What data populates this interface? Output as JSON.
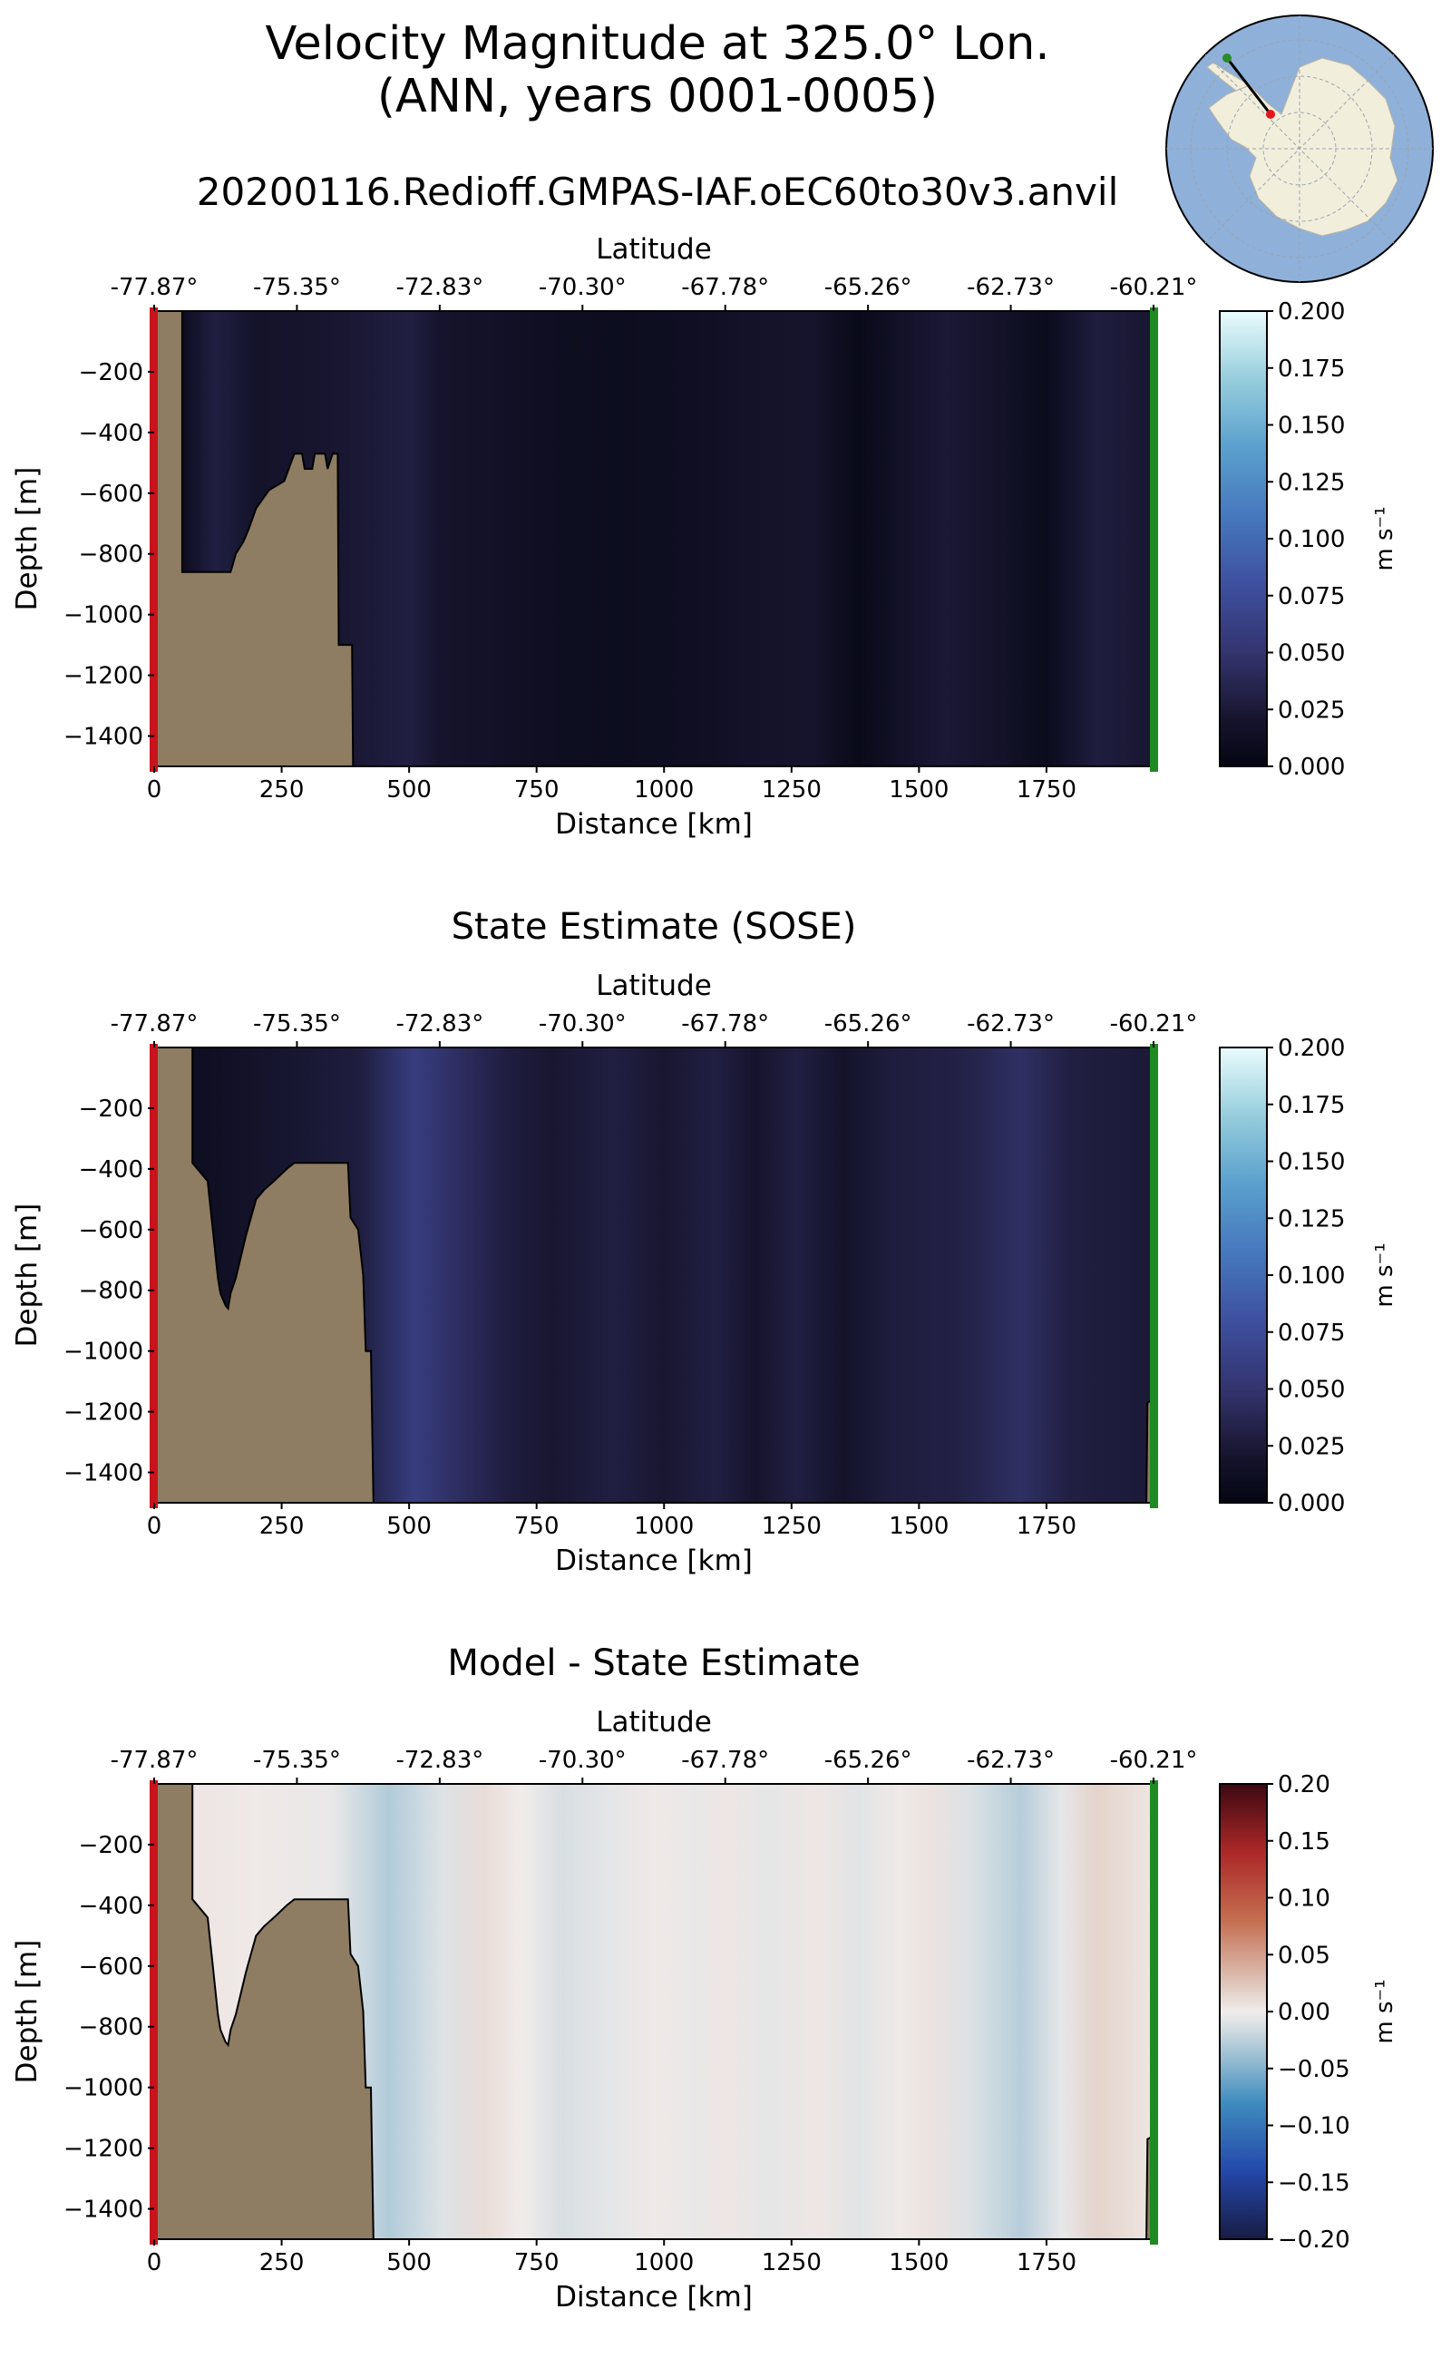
{
  "figure": {
    "title_line1": "Velocity Magnitude at 325.0° Lon.",
    "title_line2": "(ANN, years 0001-0005)",
    "run_name": "20200116.Redioff.GMPAS-IAF.oEC60to30v3.anvil"
  },
  "colors": {
    "land": "#8e7d63",
    "start_marker": "#c8141c",
    "end_marker": "#1f8a24",
    "inset_ocean": "#8fb0d9",
    "inset_land": "#f1eedc"
  },
  "inset_map": {
    "icon": "antarctica-polar-map-icon",
    "start_point_color": "#e8141c",
    "end_point_color": "#2a8a2a"
  },
  "chart_data": [
    {
      "type": "heatmap",
      "title": "",
      "xlabel": "Distance [km]",
      "ylabel": "Depth [m]",
      "top_xlabel": "Latitude",
      "xlim": [
        0,
        1960
      ],
      "ylim": [
        -1500,
        0
      ],
      "xticks": [
        0,
        250,
        500,
        750,
        1000,
        1250,
        1500,
        1750
      ],
      "yticks": [
        -200,
        -400,
        -600,
        -800,
        -1000,
        -1200,
        -1400
      ],
      "top_ticks": [
        "-77.87°",
        "-75.35°",
        "-72.83°",
        "-70.30°",
        "-67.78°",
        "-65.26°",
        "-62.73°",
        "-60.21°"
      ],
      "colorbar": {
        "colormap": "ice",
        "min": 0.0,
        "max": 0.2,
        "ticks": [
          "0.000",
          "0.025",
          "0.050",
          "0.075",
          "0.100",
          "0.125",
          "0.150",
          "0.175",
          "0.200"
        ],
        "label": "m s⁻¹"
      },
      "column_values": [
        {
          "x": 0,
          "v": 0.012
        },
        {
          "x": 60,
          "v": 0.012
        },
        {
          "x": 120,
          "v": 0.03
        },
        {
          "x": 200,
          "v": 0.018
        },
        {
          "x": 260,
          "v": 0.02
        },
        {
          "x": 360,
          "v": 0.022
        },
        {
          "x": 500,
          "v": 0.03
        },
        {
          "x": 560,
          "v": 0.02
        },
        {
          "x": 680,
          "v": 0.016
        },
        {
          "x": 760,
          "v": 0.012
        },
        {
          "x": 900,
          "v": 0.01
        },
        {
          "x": 1050,
          "v": 0.012
        },
        {
          "x": 1200,
          "v": 0.018
        },
        {
          "x": 1290,
          "v": 0.02
        },
        {
          "x": 1380,
          "v": 0.005
        },
        {
          "x": 1460,
          "v": 0.016
        },
        {
          "x": 1550,
          "v": 0.024
        },
        {
          "x": 1650,
          "v": 0.018
        },
        {
          "x": 1750,
          "v": 0.008
        },
        {
          "x": 1850,
          "v": 0.028
        },
        {
          "x": 1960,
          "v": 0.022
        }
      ],
      "bathymetry": [
        [
          0,
          0
        ],
        [
          55,
          0
        ],
        [
          55,
          -860
        ],
        [
          150,
          -860
        ],
        [
          160,
          -800
        ],
        [
          175,
          -760
        ],
        [
          185,
          -720
        ],
        [
          200,
          -650
        ],
        [
          225,
          -590
        ],
        [
          255,
          -560
        ],
        [
          275,
          -470
        ],
        [
          290,
          -470
        ],
        [
          295,
          -520
        ],
        [
          310,
          -520
        ],
        [
          315,
          -470
        ],
        [
          335,
          -470
        ],
        [
          340,
          -520
        ],
        [
          350,
          -470
        ],
        [
          360,
          -470
        ],
        [
          362,
          -1100
        ],
        [
          388,
          -1100
        ],
        [
          390,
          -1500
        ],
        [
          0,
          -1500
        ]
      ],
      "bathymetry_right": []
    },
    {
      "type": "heatmap",
      "title": "State Estimate (SOSE)",
      "xlabel": "Distance [km]",
      "ylabel": "Depth [m]",
      "top_xlabel": "Latitude",
      "xlim": [
        0,
        1960
      ],
      "ylim": [
        -1500,
        0
      ],
      "xticks": [
        0,
        250,
        500,
        750,
        1000,
        1250,
        1500,
        1750
      ],
      "yticks": [
        -200,
        -400,
        -600,
        -800,
        -1000,
        -1200,
        -1400
      ],
      "top_ticks": [
        "-77.87°",
        "-75.35°",
        "-72.83°",
        "-70.30°",
        "-67.78°",
        "-65.26°",
        "-62.73°",
        "-60.21°"
      ],
      "colorbar": {
        "colormap": "ice",
        "min": 0.0,
        "max": 0.2,
        "ticks": [
          "0.000",
          "0.025",
          "0.050",
          "0.075",
          "0.100",
          "0.125",
          "0.150",
          "0.175",
          "0.200"
        ],
        "label": "m s⁻¹"
      },
      "column_values": [
        {
          "x": 0,
          "v": 0.012
        },
        {
          "x": 100,
          "v": 0.012
        },
        {
          "x": 200,
          "v": 0.018
        },
        {
          "x": 400,
          "v": 0.028
        },
        {
          "x": 510,
          "v": 0.06
        },
        {
          "x": 620,
          "v": 0.04
        },
        {
          "x": 700,
          "v": 0.028
        },
        {
          "x": 780,
          "v": 0.022
        },
        {
          "x": 900,
          "v": 0.03
        },
        {
          "x": 1000,
          "v": 0.022
        },
        {
          "x": 1100,
          "v": 0.03
        },
        {
          "x": 1180,
          "v": 0.02
        },
        {
          "x": 1260,
          "v": 0.03
        },
        {
          "x": 1350,
          "v": 0.018
        },
        {
          "x": 1450,
          "v": 0.028
        },
        {
          "x": 1580,
          "v": 0.032
        },
        {
          "x": 1700,
          "v": 0.045
        },
        {
          "x": 1800,
          "v": 0.03
        },
        {
          "x": 1960,
          "v": 0.025
        }
      ],
      "bathymetry": [
        [
          0,
          0
        ],
        [
          75,
          0
        ],
        [
          75,
          -380
        ],
        [
          105,
          -440
        ],
        [
          110,
          -520
        ],
        [
          115,
          -600
        ],
        [
          120,
          -680
        ],
        [
          125,
          -760
        ],
        [
          130,
          -810
        ],
        [
          140,
          -850
        ],
        [
          145,
          -860
        ],
        [
          150,
          -810
        ],
        [
          160,
          -760
        ],
        [
          170,
          -690
        ],
        [
          180,
          -620
        ],
        [
          190,
          -560
        ],
        [
          200,
          -500
        ],
        [
          215,
          -470
        ],
        [
          235,
          -440
        ],
        [
          260,
          -400
        ],
        [
          275,
          -380
        ],
        [
          380,
          -380
        ],
        [
          385,
          -560
        ],
        [
          400,
          -600
        ],
        [
          410,
          -750
        ],
        [
          415,
          -1000
        ],
        [
          425,
          -1000
        ],
        [
          430,
          -1500
        ],
        [
          0,
          -1500
        ]
      ],
      "bathymetry_right": [
        [
          1960,
          -1160
        ],
        [
          1948,
          -1170
        ],
        [
          1946,
          -1500
        ],
        [
          1960,
          -1500
        ]
      ]
    },
    {
      "type": "heatmap",
      "title": "Model - State Estimate",
      "xlabel": "Distance [km]",
      "ylabel": "Depth [m]",
      "top_xlabel": "Latitude",
      "xlim": [
        0,
        1960
      ],
      "ylim": [
        -1500,
        0
      ],
      "xticks": [
        0,
        250,
        500,
        750,
        1000,
        1250,
        1500,
        1750
      ],
      "yticks": [
        -200,
        -400,
        -600,
        -800,
        -1000,
        -1200,
        -1400
      ],
      "top_ticks": [
        "-77.87°",
        "-75.35°",
        "-72.83°",
        "-70.30°",
        "-67.78°",
        "-65.26°",
        "-62.73°",
        "-60.21°"
      ],
      "colorbar": {
        "colormap": "balance",
        "min": -0.2,
        "max": 0.2,
        "ticks": [
          "−0.20",
          "−0.15",
          "−0.10",
          "−0.05",
          "0.00",
          "0.05",
          "0.10",
          "0.15",
          "0.20"
        ],
        "label": "m s⁻¹"
      },
      "column_values": [
        {
          "x": 0,
          "v": 0.0
        },
        {
          "x": 100,
          "v": 0.004
        },
        {
          "x": 200,
          "v": 0.002
        },
        {
          "x": 350,
          "v": -0.004
        },
        {
          "x": 460,
          "v": -0.03
        },
        {
          "x": 560,
          "v": -0.01
        },
        {
          "x": 650,
          "v": 0.01
        },
        {
          "x": 720,
          "v": 0.0
        },
        {
          "x": 800,
          "v": -0.012
        },
        {
          "x": 900,
          "v": -0.006
        },
        {
          "x": 980,
          "v": 0.002
        },
        {
          "x": 1060,
          "v": -0.004
        },
        {
          "x": 1120,
          "v": 0.004
        },
        {
          "x": 1200,
          "v": -0.006
        },
        {
          "x": 1300,
          "v": 0.004
        },
        {
          "x": 1380,
          "v": -0.008
        },
        {
          "x": 1460,
          "v": 0.002
        },
        {
          "x": 1520,
          "v": 0.006
        },
        {
          "x": 1600,
          "v": -0.01
        },
        {
          "x": 1700,
          "v": -0.028
        },
        {
          "x": 1780,
          "v": -0.005
        },
        {
          "x": 1850,
          "v": 0.016
        },
        {
          "x": 1960,
          "v": 0.004
        }
      ],
      "bathymetry": [
        [
          0,
          0
        ],
        [
          75,
          0
        ],
        [
          75,
          -380
        ],
        [
          105,
          -440
        ],
        [
          110,
          -520
        ],
        [
          115,
          -600
        ],
        [
          120,
          -680
        ],
        [
          125,
          -760
        ],
        [
          130,
          -810
        ],
        [
          140,
          -850
        ],
        [
          145,
          -860
        ],
        [
          150,
          -810
        ],
        [
          160,
          -760
        ],
        [
          170,
          -690
        ],
        [
          180,
          -620
        ],
        [
          190,
          -560
        ],
        [
          200,
          -500
        ],
        [
          215,
          -470
        ],
        [
          235,
          -440
        ],
        [
          260,
          -400
        ],
        [
          275,
          -380
        ],
        [
          380,
          -380
        ],
        [
          385,
          -560
        ],
        [
          400,
          -600
        ],
        [
          410,
          -750
        ],
        [
          415,
          -1000
        ],
        [
          425,
          -1000
        ],
        [
          430,
          -1500
        ],
        [
          0,
          -1500
        ]
      ],
      "bathymetry_right": [
        [
          1960,
          -1160
        ],
        [
          1948,
          -1170
        ],
        [
          1946,
          -1500
        ],
        [
          1960,
          -1500
        ]
      ]
    }
  ]
}
